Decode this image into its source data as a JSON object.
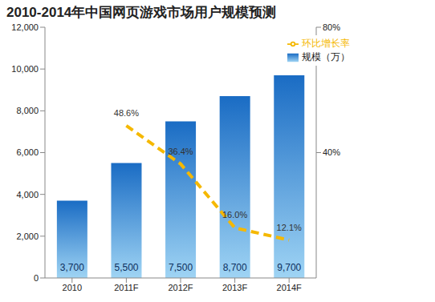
{
  "chart_data": {
    "type": "bar",
    "title": "2010-2014年中国网页游戏市场用户规模预测",
    "categories": [
      "2010",
      "2011F",
      "2012F",
      "2013F",
      "2014F"
    ],
    "series": [
      {
        "name": "规模（万）",
        "type": "bar",
        "color": "#1a6cc4",
        "values": [
          3700,
          5500,
          7500,
          8700,
          9700
        ],
        "value_labels": [
          "3,700",
          "5,500",
          "7,500",
          "8,700",
          "9,700"
        ]
      },
      {
        "name": "环比增长率",
        "type": "line",
        "axis": "y2",
        "color": "#f5b800",
        "line_style": "dashed",
        "marker": "none",
        "values": [
          null,
          48.6,
          36.4,
          16.0,
          12.1
        ],
        "value_labels": [
          null,
          "48.6%",
          "36.4%",
          "16.0%",
          "12.1%"
        ]
      }
    ],
    "ylim": [
      0,
      12000
    ],
    "yticks": [
      0,
      {
        "value": 2000,
        "label": "2,000"
      },
      {
        "value": 4000,
        "label": "4,000"
      },
      {
        "value": 6000,
        "label": "6,000"
      },
      {
        "value": 8000,
        "label": "8,000"
      },
      {
        "value": 10000,
        "label": "10,000"
      },
      {
        "value": 12000,
        "label": "12,000"
      }
    ],
    "y2lim": [
      0,
      80
    ],
    "y2ticks": [
      {
        "value": 40,
        "label": "40%"
      },
      {
        "value": 80,
        "label": "80%"
      }
    ],
    "grid": false,
    "legend": "top-right",
    "data_labels": true
  }
}
